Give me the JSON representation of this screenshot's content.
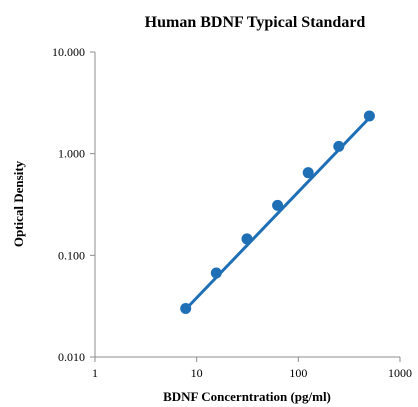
{
  "chart_data": {
    "type": "scatter",
    "title": "Human BDNF Typical Standard",
    "xlabel": "BDNF Concerntration (pg/ml)",
    "ylabel": "Optical Density",
    "x_scale": "log",
    "y_scale": "log",
    "xlim": [
      1,
      1000
    ],
    "ylim": [
      0.01,
      10
    ],
    "x_ticks": [
      "1",
      "10",
      "100",
      "1000"
    ],
    "y_ticks": [
      "0.010",
      "0.100",
      "1.000",
      "10.000"
    ],
    "grid": false,
    "legend": "none",
    "marker_color": "#1f6fb6",
    "series": [
      {
        "x": [
          7.8,
          15.6,
          31.25,
          62.5,
          125,
          250,
          500
        ],
        "y": [
          0.03,
          0.067,
          0.145,
          0.31,
          0.65,
          1.18,
          2.35
        ]
      }
    ],
    "trendline": {
      "x": [
        7.8,
        500
      ],
      "y": [
        0.0295,
        2.25
      ]
    }
  }
}
